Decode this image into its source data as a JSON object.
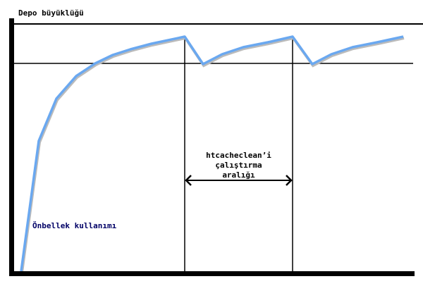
{
  "title": "Depo büyüklüğü",
  "interval_label": [
    "htcacheclean’i",
    "çalıştırma",
    "aralığı"
  ],
  "curve_label": "Önbellek kullanımı",
  "colors": {
    "curve": "#6aa8f0",
    "axes": "#000000",
    "curve_label": "#000066"
  }
}
